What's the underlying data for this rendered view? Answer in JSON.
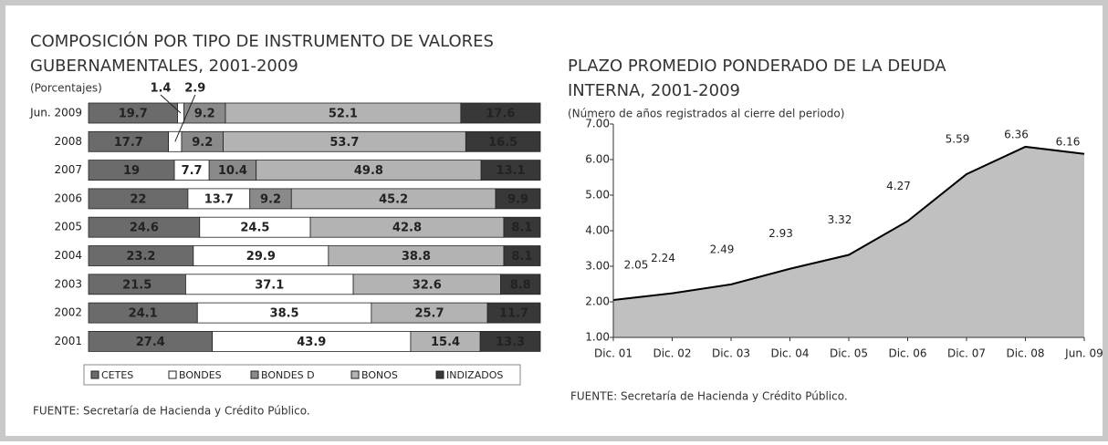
{
  "chart_data": [
    {
      "type": "stacked-bar-horizontal",
      "title": [
        "COMPOSICIÓN POR TIPO DE INSTRUMENTO DE VALORES",
        "GUBERNAMENTALES, 2001-2009"
      ],
      "subtitle": "(Porcentajes)",
      "source": "FUENTE: Secretaría de Hacienda y Crédito Público.",
      "categories": [
        "Jun. 2009",
        "2008",
        "2007",
        "2006",
        "2005",
        "2004",
        "2003",
        "2002",
        "2001"
      ],
      "xlim": [
        0,
        100
      ],
      "series": [
        {
          "name": "CETES",
          "color": "#6b6b6b",
          "values": [
            19.7,
            17.7,
            19.0,
            22.0,
            24.6,
            23.2,
            21.5,
            24.1,
            27.4
          ]
        },
        {
          "name": "BONDES",
          "color": "#ffffff",
          "values": [
            1.4,
            2.9,
            7.7,
            13.7,
            24.5,
            29.9,
            37.1,
            38.5,
            43.9
          ]
        },
        {
          "name": "BONDES D",
          "color": "#8a8a8a",
          "values": [
            9.2,
            9.2,
            10.4,
            9.2,
            0,
            0,
            0,
            0,
            0
          ]
        },
        {
          "name": "BONOS",
          "color": "#b3b3b3",
          "values": [
            52.1,
            53.7,
            49.8,
            45.2,
            42.8,
            38.8,
            32.6,
            25.7,
            15.4
          ]
        },
        {
          "name": "INDIZADOS",
          "color": "#383838",
          "values": [
            17.6,
            16.5,
            13.1,
            9.9,
            8.1,
            8.1,
            8.8,
            11.7,
            13.3
          ]
        }
      ]
    },
    {
      "type": "area",
      "title": [
        "PLAZO PROMEDIO PONDERADO DE LA DEUDA",
        "INTERNA, 2001-2009"
      ],
      "subtitle": "(Número de años registrados al cierre del periodo)",
      "source": "FUENTE:  Secretaría de Hacienda  y Crédito Público.",
      "categories": [
        "Dic. 01",
        "Dic. 02",
        "Dic. 03",
        "Dic. 04",
        "Dic. 05",
        "Dic. 06",
        "Dic. 07",
        "Dic. 08",
        "Jun. 09"
      ],
      "values": [
        2.05,
        2.24,
        2.49,
        2.93,
        3.32,
        4.27,
        5.59,
        6.36,
        6.16
      ],
      "value_labels": [
        "2.05",
        "2.24",
        "2.49",
        "2.93",
        "3.32",
        "4.27",
        "5.59",
        "6.36",
        "6.16"
      ],
      "color": "#c0c0c0",
      "ylim": [
        1,
        7
      ],
      "yticks": [
        {
          "value": 1,
          "label": "1.00"
        },
        {
          "value": 2,
          "label": "2.00"
        },
        {
          "value": 3,
          "label": "3.00"
        },
        {
          "value": 4,
          "label": "4.00"
        },
        {
          "value": 5,
          "label": "5.00"
        },
        {
          "value": 6,
          "label": "6.00"
        },
        {
          "value": 7,
          "label": "7.00"
        }
      ]
    }
  ]
}
